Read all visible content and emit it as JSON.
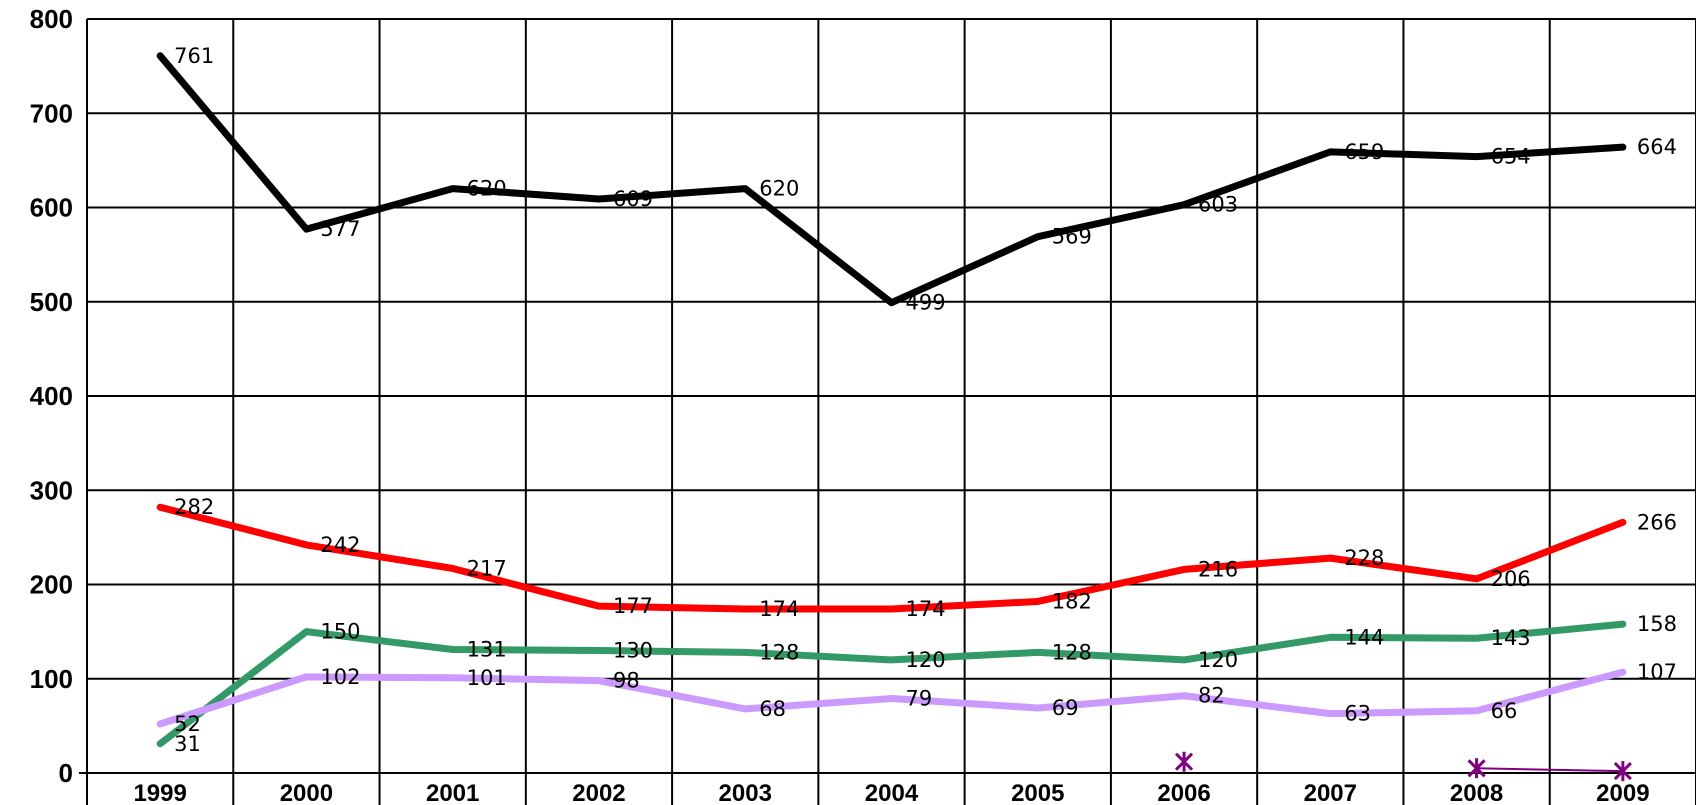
{
  "chart_data": {
    "type": "line",
    "title": "",
    "xlabel": "",
    "ylabel": "",
    "categories": [
      "1999",
      "2000",
      "2001",
      "2002",
      "2003",
      "2004",
      "2005",
      "2006",
      "2007",
      "2008",
      "2009"
    ],
    "y_ticks": [
      "0",
      "100",
      "200",
      "300",
      "400",
      "500",
      "600",
      "700",
      "800"
    ],
    "ylim": [
      0,
      800
    ],
    "grid": true,
    "legend": "none",
    "series": [
      {
        "color": "#000000",
        "values": [
          761,
          577,
          620,
          609,
          620,
          499,
          569,
          603,
          659,
          654,
          664
        ],
        "labels": [
          "761",
          "577",
          "620",
          "609",
          "620",
          "499",
          "569",
          "603",
          "659",
          "654",
          "664"
        ]
      },
      {
        "color": "#ff0000",
        "values": [
          282,
          242,
          217,
          177,
          174,
          174,
          182,
          216,
          228,
          206,
          266
        ],
        "labels": [
          "282",
          "242",
          "217",
          "177",
          "174",
          "174",
          "182",
          "216",
          "228",
          "206",
          "266"
        ]
      },
      {
        "color": "#339966",
        "values": [
          31,
          150,
          131,
          130,
          128,
          120,
          128,
          120,
          144,
          143,
          158
        ],
        "labels": [
          "31",
          "150",
          "131",
          "130",
          "128",
          "120",
          "128",
          "120",
          "144",
          "143",
          "158"
        ]
      },
      {
        "color": "#cc99ff",
        "values": [
          52,
          102,
          101,
          98,
          68,
          79,
          69,
          82,
          63,
          66,
          107
        ],
        "labels": [
          "52",
          "102",
          "101",
          "98",
          "68",
          "79",
          "69",
          "82",
          "63",
          "66",
          "107"
        ]
      },
      {
        "color": "#800080",
        "marker": "star",
        "values": [
          null,
          null,
          null,
          null,
          null,
          null,
          null,
          12,
          null,
          5,
          2
        ]
      }
    ]
  }
}
